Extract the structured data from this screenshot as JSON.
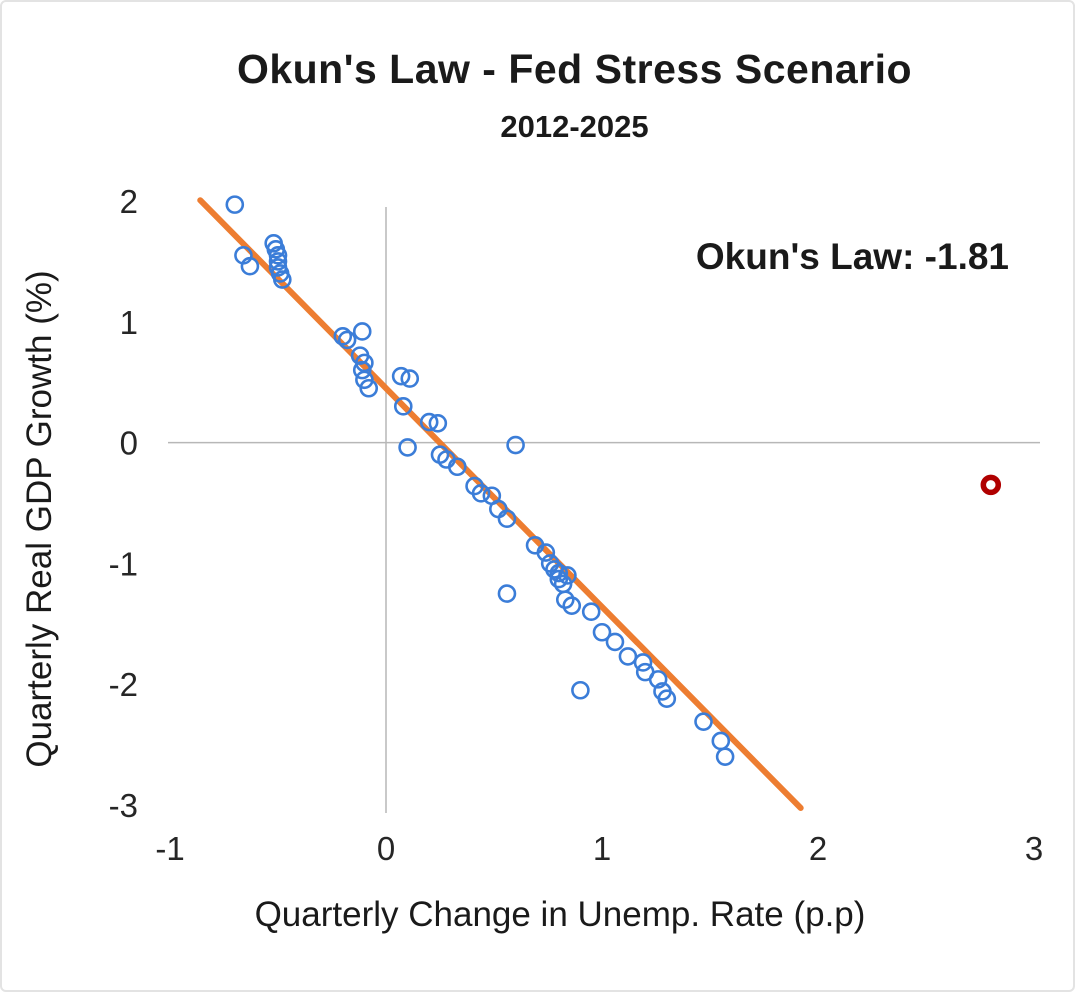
{
  "chart_data": {
    "type": "scatter",
    "title": "Okun's Law - Fed Stress Scenario",
    "subtitle": "2012-2025",
    "annotation": "Okun's Law: -1.81",
    "okun_coefficient": -1.81,
    "xlabel": "Quarterly Change in Unemp. Rate (p.p)",
    "ylabel": "Quarterly Real GDP Growth (%)",
    "xlim": [
      -1,
      3
    ],
    "ylim": [
      -3,
      2
    ],
    "xticks": [
      -1,
      0,
      1,
      2,
      3
    ],
    "yticks": [
      -3,
      -2,
      -1,
      0,
      1,
      2
    ],
    "grid": false,
    "legend": "none",
    "axis_color": "#b7b7b7",
    "text_color": "#1a1a1a",
    "series": [
      {
        "name": "quarterly-observations",
        "marker": "open-circle",
        "color": "#3b7dd8",
        "radius": 8,
        "stroke_width": 2.6,
        "points": [
          [
            -0.7,
            1.97
          ],
          [
            -0.66,
            1.55
          ],
          [
            -0.63,
            1.46
          ],
          [
            -0.52,
            1.65
          ],
          [
            -0.51,
            1.6
          ],
          [
            -0.5,
            1.55
          ],
          [
            -0.5,
            1.5
          ],
          [
            -0.5,
            1.45
          ],
          [
            -0.49,
            1.4
          ],
          [
            -0.48,
            1.35
          ],
          [
            -0.2,
            0.88
          ],
          [
            -0.18,
            0.85
          ],
          [
            -0.11,
            0.92
          ],
          [
            -0.12,
            0.72
          ],
          [
            -0.1,
            0.66
          ],
          [
            -0.11,
            0.6
          ],
          [
            -0.1,
            0.52
          ],
          [
            -0.08,
            0.45
          ],
          [
            0.07,
            0.55
          ],
          [
            0.11,
            0.53
          ],
          [
            0.08,
            0.3
          ],
          [
            0.1,
            -0.04
          ],
          [
            0.2,
            0.17
          ],
          [
            0.24,
            0.16
          ],
          [
            0.25,
            -0.1
          ],
          [
            0.28,
            -0.14
          ],
          [
            0.33,
            -0.2
          ],
          [
            0.41,
            -0.36
          ],
          [
            0.44,
            -0.42
          ],
          [
            0.49,
            -0.44
          ],
          [
            0.52,
            -0.55
          ],
          [
            0.56,
            -0.63
          ],
          [
            0.6,
            -0.02
          ],
          [
            0.56,
            -1.25
          ],
          [
            0.69,
            -0.85
          ],
          [
            0.74,
            -0.91
          ],
          [
            0.76,
            -1.0
          ],
          [
            0.78,
            -1.05
          ],
          [
            0.8,
            -1.08
          ],
          [
            0.8,
            -1.13
          ],
          [
            0.82,
            -1.17
          ],
          [
            0.84,
            -1.1
          ],
          [
            0.83,
            -1.3
          ],
          [
            0.86,
            -1.35
          ],
          [
            0.95,
            -1.4
          ],
          [
            1.0,
            -1.57
          ],
          [
            0.9,
            -2.05
          ],
          [
            1.06,
            -1.65
          ],
          [
            1.12,
            -1.77
          ],
          [
            1.19,
            -1.82
          ],
          [
            1.2,
            -1.9
          ],
          [
            1.26,
            -1.96
          ],
          [
            1.28,
            -2.06
          ],
          [
            1.3,
            -2.12
          ],
          [
            1.47,
            -2.31
          ],
          [
            1.55,
            -2.47
          ],
          [
            1.57,
            -2.6
          ]
        ]
      },
      {
        "name": "stress-scenario-outlier",
        "marker": "open-circle-bold",
        "color": "#b00000",
        "radius": 7.5,
        "stroke_width": 5.5,
        "points": [
          [
            2.8,
            -0.35
          ]
        ]
      }
    ],
    "trend_line": {
      "slope": -1.81,
      "intercept": 0.45,
      "x_start": -0.86,
      "x_end": 1.92,
      "color": "#ed7d31",
      "width": 6
    }
  }
}
